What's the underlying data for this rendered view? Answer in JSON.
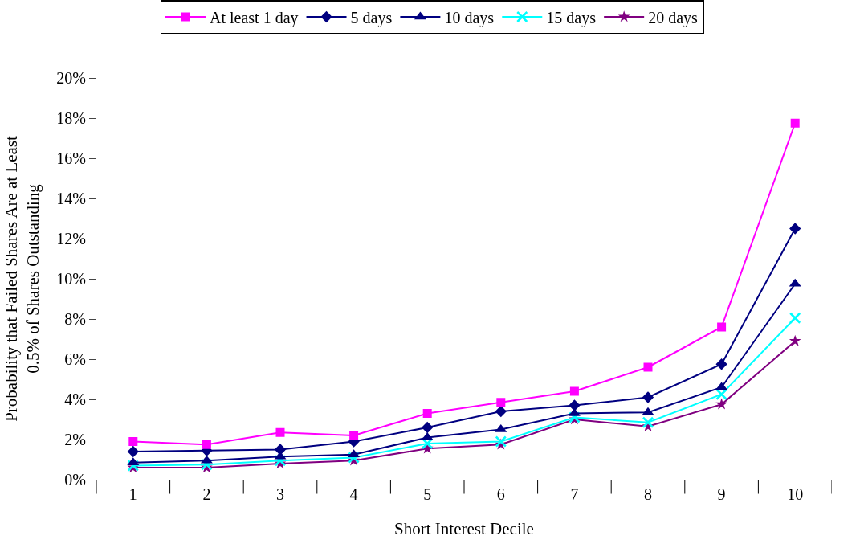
{
  "chart_data": {
    "type": "line",
    "xlabel": "Short Interest Decile",
    "ylabel": "Probability that Failed Shares Are at Least\n0.5% of Shares Outstanding",
    "categories": [
      "1",
      "2",
      "3",
      "4",
      "5",
      "6",
      "7",
      "8",
      "9",
      "10"
    ],
    "ylim": [
      0,
      20
    ],
    "yticks": [
      {
        "value": 0,
        "label": "0%"
      },
      {
        "value": 2,
        "label": "2%"
      },
      {
        "value": 4,
        "label": "4%"
      },
      {
        "value": 6,
        "label": "6%"
      },
      {
        "value": 8,
        "label": "8%"
      },
      {
        "value": 10,
        "label": "10%"
      },
      {
        "value": 12,
        "label": "12%"
      },
      {
        "value": 14,
        "label": "14%"
      },
      {
        "value": 16,
        "label": "16%"
      },
      {
        "value": 18,
        "label": "18%"
      },
      {
        "value": 20,
        "label": "20%"
      }
    ],
    "legend": "top",
    "line_style": "solid",
    "series": [
      {
        "name": "At least 1 day",
        "color": "#ff00ff",
        "marker": "square",
        "values": [
          1.9,
          1.75,
          2.35,
          2.2,
          3.3,
          3.85,
          4.4,
          5.6,
          7.6,
          17.75
        ]
      },
      {
        "name": "5 days",
        "color": "#000080",
        "marker": "diamond",
        "values": [
          1.4,
          1.45,
          1.5,
          1.9,
          2.6,
          3.4,
          3.7,
          4.1,
          5.75,
          12.5
        ]
      },
      {
        "name": "10 days",
        "color": "#000080",
        "marker": "triangle",
        "values": [
          0.85,
          0.95,
          1.15,
          1.25,
          2.1,
          2.5,
          3.3,
          3.35,
          4.6,
          9.75
        ]
      },
      {
        "name": "15 days",
        "color": "#00ffff",
        "marker": "cross",
        "values": [
          0.7,
          0.75,
          0.95,
          1.1,
          1.8,
          1.9,
          3.1,
          2.85,
          4.25,
          8.05
        ]
      },
      {
        "name": "20 days",
        "color": "#800080",
        "marker": "star",
        "values": [
          0.6,
          0.6,
          0.8,
          0.95,
          1.55,
          1.75,
          3.0,
          2.65,
          3.75,
          6.9
        ]
      }
    ]
  }
}
